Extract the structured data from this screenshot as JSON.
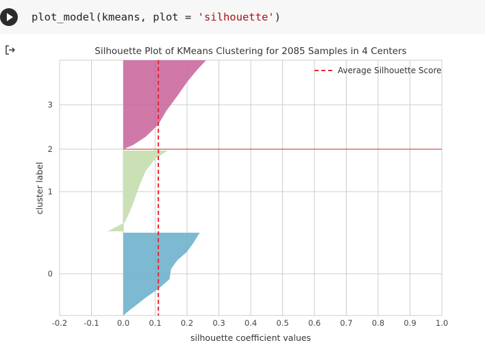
{
  "cell": {
    "code_prefix": "plot_model(kmeans, plot = ",
    "code_string": "'silhouette'",
    "code_suffix": ")"
  },
  "colors": {
    "cluster0": "#6fb2cc",
    "cluster1": "#c8dfb1",
    "cluster2": "#e3b6bf",
    "cluster3": "#c8629a",
    "avg_line": "#e8242e",
    "grid": "#cccccc",
    "hline": "#d35050"
  },
  "chart_data": {
    "type": "area",
    "title": "Silhouette Plot of KMeans Clustering for 2085 Samples in 4 Centers",
    "xlabel": "silhouette coefficient values",
    "ylabel": "cluster label",
    "xlim": [
      -0.2,
      1.0
    ],
    "x_ticks": [
      "-0.2",
      "-0.1",
      "0.0",
      "0.1",
      "0.2",
      "0.3",
      "0.4",
      "0.5",
      "0.6",
      "0.7",
      "0.8",
      "0.9",
      "1.0"
    ],
    "y_ticks": [
      "0",
      "1",
      "2",
      "3"
    ],
    "grid": true,
    "legend_position": "top-right",
    "legend": [
      "Average Silhouette Score"
    ],
    "average_silhouette_score": 0.11,
    "clusters": [
      {
        "label": "0",
        "min_score": 0.0,
        "max_score": 0.24
      },
      {
        "label": "1",
        "min_score": -0.05,
        "max_score": 0.14
      },
      {
        "label": "2",
        "min_score": 0.11,
        "max_score": 1.0
      },
      {
        "label": "3",
        "min_score": 0.0,
        "max_score": 0.26
      }
    ]
  }
}
